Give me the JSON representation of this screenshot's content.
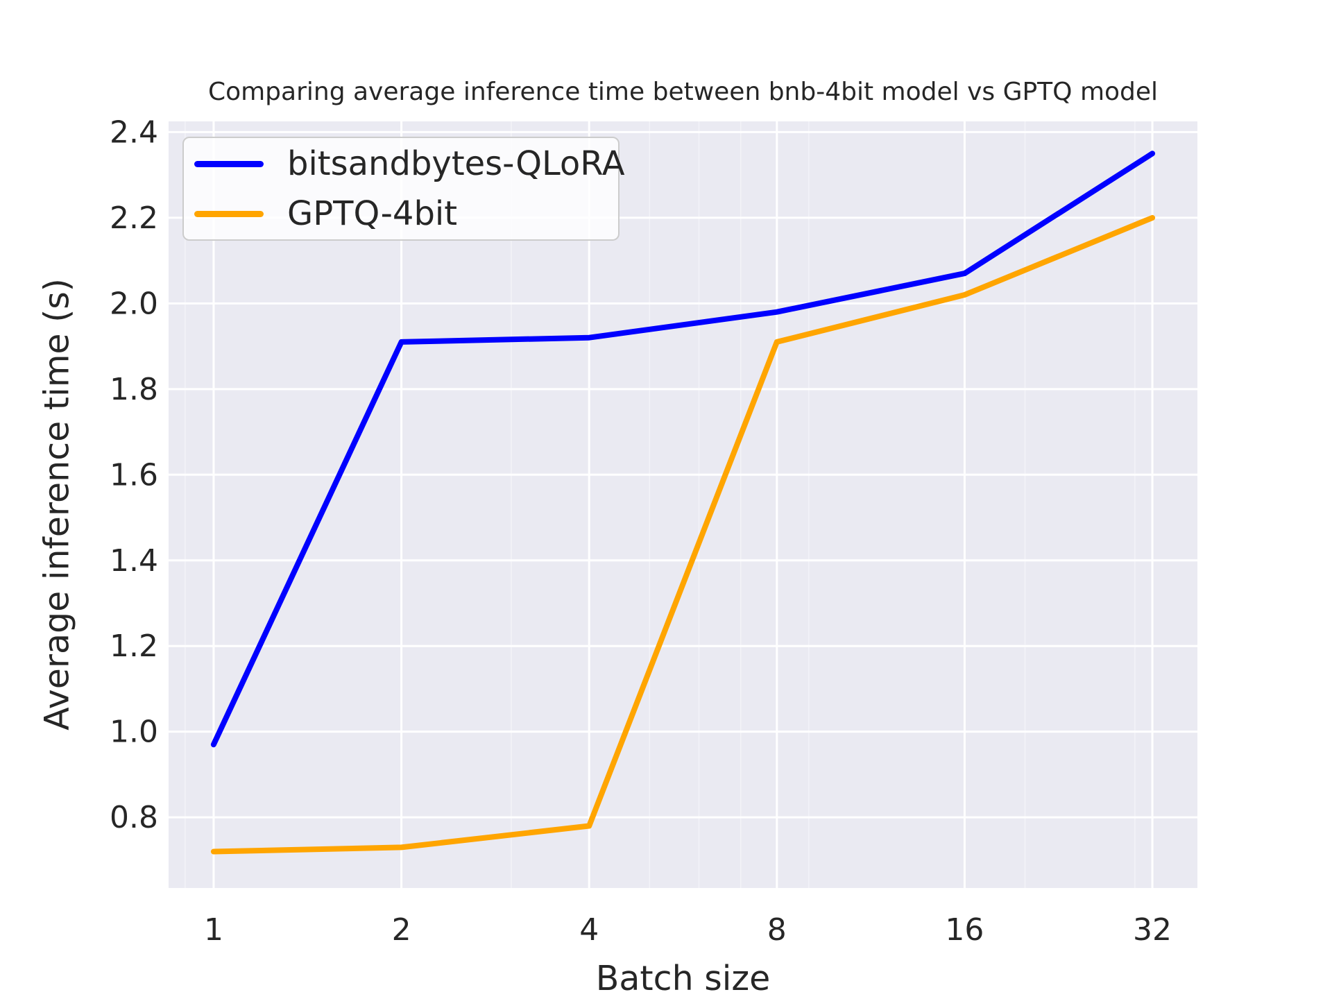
{
  "figure": {
    "background_color": "#ffffff",
    "plot_background_color": "#eaeaf2",
    "grid_color": "#ffffff",
    "text_color": "#262626",
    "legend_border_color": "#cccccc"
  },
  "chart_data": {
    "type": "line",
    "title": "Comparing average inference time between bnb-4bit model vs GPTQ model",
    "xlabel": "Batch size",
    "ylabel": "Average inference time (s)",
    "x_scale": "log2",
    "x": [
      1,
      2,
      4,
      8,
      16,
      32
    ],
    "series": [
      {
        "name": "bitsandbytes-QLoRA",
        "color": "#0000ff",
        "values": [
          0.97,
          1.91,
          1.92,
          1.98,
          2.07,
          2.35
        ]
      },
      {
        "name": "GPTQ-4bit",
        "color": "#ffa500",
        "values": [
          0.72,
          0.73,
          0.78,
          1.91,
          2.02,
          2.2
        ]
      }
    ],
    "x_ticks": [
      1,
      2,
      4,
      8,
      16,
      32
    ],
    "x_tick_labels": [
      "1",
      "2",
      "4",
      "8",
      "16",
      "32"
    ],
    "x_minor_ticks": [
      0.9,
      3,
      5,
      6,
      7,
      9,
      20,
      30
    ],
    "y_ticks": [
      0.8,
      1.0,
      1.2,
      1.4,
      1.6,
      1.8,
      2.0,
      2.2,
      2.4
    ],
    "xlim_log2": [
      -0.24,
      5.24
    ],
    "ylim": [
      0.635,
      2.425
    ],
    "grid": true,
    "legend_position": "upper left"
  }
}
